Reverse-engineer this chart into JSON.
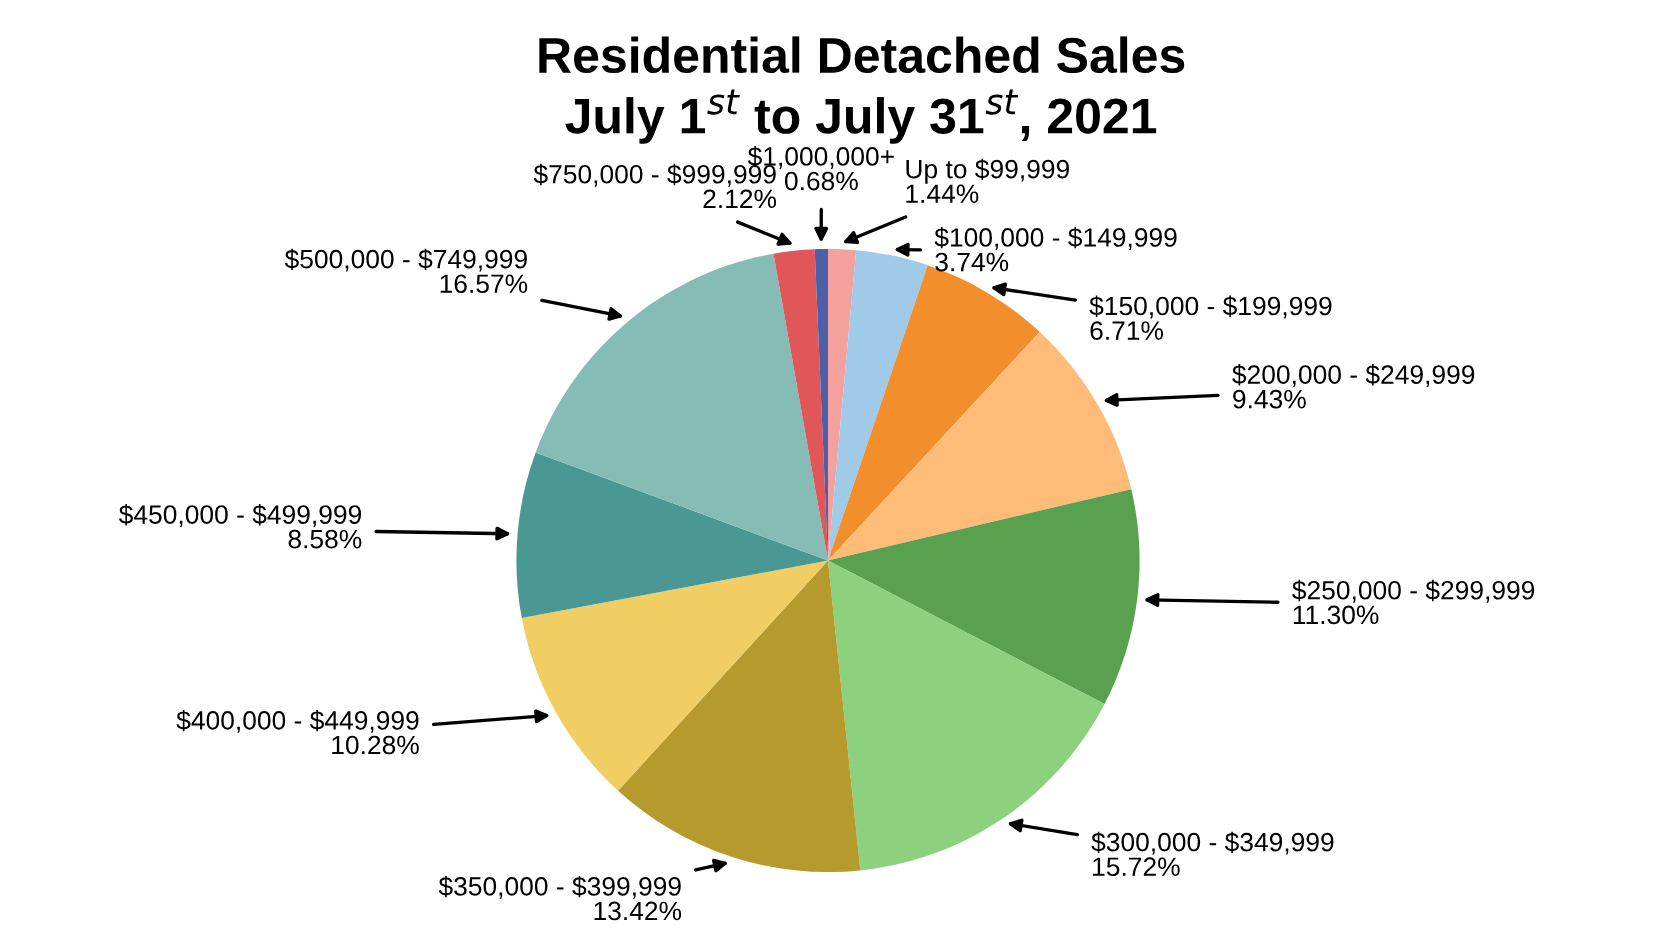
{
  "chart_data": {
    "type": "pie",
    "title": "Residential Detached Sales\nJuly 1$^{st}$ to July 31$^{st}$, 2021",
    "categories": [
      "Up to $99,999",
      "$100,000 - $149,999",
      "$150,000 - $199,999",
      "$200,000 - $249,999",
      "$250,000 - $299,999",
      "$300,000 - $349,999",
      "$350,000 - $399,999",
      "$400,000 - $449,999",
      "$450,000 - $499,999",
      "$500,000 - $749,999",
      "$750,000 - $999,999",
      "$1,000,000+"
    ],
    "values": [
      1.44,
      3.74,
      6.71,
      9.43,
      11.3,
      15.72,
      13.42,
      10.28,
      8.58,
      16.57,
      2.12,
      0.68
    ],
    "value_labels": [
      "1.44%",
      "3.74%",
      "6.71%",
      "9.43%",
      "11.30%",
      "15.72%",
      "13.42%",
      "10.28%",
      "8.58%",
      "16.57%",
      "2.12%",
      "0.68%"
    ],
    "colors": [
      "#f4a09c",
      "#9fcbe8",
      "#f28e2b",
      "#ffbb78",
      "#59a14f",
      "#8cd17d",
      "#b69a2e",
      "#f1ce63",
      "#499894",
      "#86bcb6",
      "#e15759",
      "#4e5fa8"
    ],
    "legend": false
  }
}
